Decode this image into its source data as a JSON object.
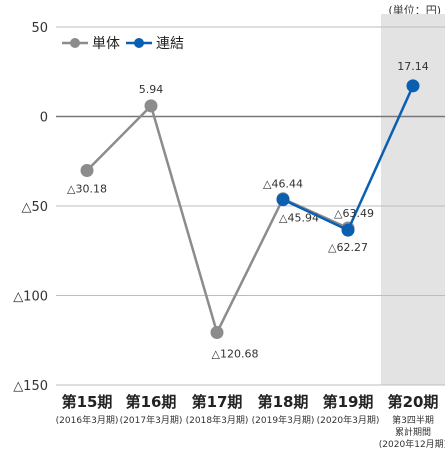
{
  "chart_data": {
    "type": "line",
    "unit": "(単位：円)",
    "categories": [
      {
        "period": "第15期",
        "date": "(2016年3月期)"
      },
      {
        "period": "第16期",
        "date": "(2017年3月期)"
      },
      {
        "period": "第17期",
        "date": "(2018年3月期)"
      },
      {
        "period": "第18期",
        "date": "(2019年3月期)"
      },
      {
        "period": "第19期",
        "date": "(2020年3月期)"
      },
      {
        "period": "第20期",
        "date": "第3四半期 累計期間 (2020年12月期)"
      }
    ],
    "y_ticks": [
      {
        "value": 50,
        "label": "50"
      },
      {
        "value": 0,
        "label": "0"
      },
      {
        "value": -50,
        "label": "△50"
      },
      {
        "value": -100,
        "label": "△100"
      },
      {
        "value": -150,
        "label": "△150"
      }
    ],
    "ylim": [
      -150,
      50
    ],
    "highlight_category": 5,
    "series": [
      {
        "name": "単体",
        "color": "#8c8c8c",
        "values": [
          -30.18,
          5.94,
          -120.68,
          -45.94,
          -62.27,
          null
        ],
        "labels": [
          "△30.18",
          "5.94",
          "△120.68",
          "△45.94",
          "△62.27",
          ""
        ]
      },
      {
        "name": "連結",
        "color": "#0a5fb0",
        "values": [
          null,
          null,
          null,
          -46.44,
          -63.49,
          17.14
        ],
        "labels": [
          "",
          "",
          "",
          "△46.44",
          "△63.49",
          "17.14"
        ]
      }
    ]
  }
}
